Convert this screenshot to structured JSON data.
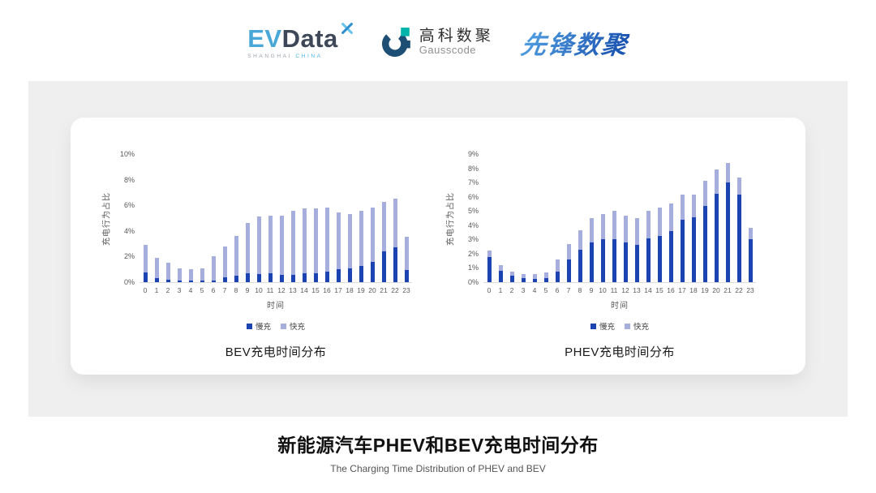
{
  "header": {
    "evdata": {
      "ev": "EV",
      "data": "Data",
      "sub_left": "SHANGHAI",
      "sub_right": "CHINA"
    },
    "gausscode": {
      "cn": "高科数聚",
      "en": "Gausscode"
    },
    "xianfeng": {
      "text": "先锋数聚"
    }
  },
  "footer": {
    "title": "新能源汽车PHEV和BEV充电时间分布",
    "subtitle": "The Charging Time Distribution of PHEV and BEV"
  },
  "colors": {
    "slow_charge": "#1b44b2",
    "fast_charge": "#a6aedd",
    "panel_gray": "#efefef",
    "axis_text": "#595959",
    "evdata_blue": "#49a8d8",
    "evdata_dark": "#3d4757",
    "gauss_navy": "#1d4e74",
    "gauss_teal": "#00b3ab",
    "xianfeng_blue": "#2a6fc4"
  },
  "chart_data": [
    {
      "type": "bar",
      "stacked": true,
      "title": "BEV充电时间分布",
      "xlabel": "时间",
      "ylabel": "充电行为占比",
      "categories": [
        0,
        1,
        2,
        3,
        4,
        5,
        6,
        7,
        8,
        9,
        10,
        11,
        12,
        13,
        14,
        15,
        16,
        17,
        18,
        19,
        20,
        21,
        22,
        23
      ],
      "series": [
        {
          "name": "慢充",
          "color": "#1b44b2",
          "values": [
            0.75,
            0.35,
            0.2,
            0.1,
            0.1,
            0.1,
            0.15,
            0.4,
            0.5,
            0.7,
            0.65,
            0.7,
            0.6,
            0.6,
            0.7,
            0.7,
            0.8,
            1.0,
            1.1,
            1.3,
            1.6,
            2.4,
            2.7,
            0.95
          ]
        },
        {
          "name": "快充",
          "color": "#a6aedd",
          "values": [
            2.15,
            1.55,
            1.3,
            1.0,
            0.9,
            1.0,
            1.85,
            2.4,
            3.1,
            3.9,
            4.5,
            4.5,
            4.6,
            5.0,
            5.05,
            5.05,
            5.0,
            4.45,
            4.2,
            4.25,
            4.25,
            3.9,
            3.8,
            2.6
          ]
        }
      ],
      "ylim": [
        0,
        10
      ],
      "ytick_step": 2,
      "ytick_suffix": "%",
      "grid": false,
      "legend_position": "bottom"
    },
    {
      "type": "bar",
      "stacked": true,
      "title": "PHEV充电时间分布",
      "xlabel": "时间",
      "ylabel": "充电行为占比",
      "categories": [
        0,
        1,
        2,
        3,
        4,
        5,
        6,
        7,
        8,
        9,
        10,
        11,
        12,
        13,
        14,
        15,
        16,
        17,
        18,
        19,
        20,
        21,
        22,
        23
      ],
      "series": [
        {
          "name": "慢充",
          "color": "#1b44b2",
          "values": [
            1.75,
            0.8,
            0.45,
            0.3,
            0.25,
            0.3,
            0.75,
            1.6,
            2.3,
            2.8,
            3.0,
            3.0,
            2.8,
            2.65,
            3.1,
            3.25,
            3.6,
            4.4,
            4.55,
            5.35,
            6.2,
            7.0,
            6.15,
            3.05
          ]
        },
        {
          "name": "快充",
          "color": "#a6aedd",
          "values": [
            0.5,
            0.4,
            0.3,
            0.25,
            0.3,
            0.4,
            0.85,
            1.1,
            1.35,
            1.7,
            1.8,
            2.0,
            1.85,
            1.85,
            1.9,
            2.0,
            1.9,
            1.75,
            1.6,
            1.75,
            1.75,
            1.4,
            1.2,
            0.8
          ]
        }
      ],
      "ylim": [
        0,
        9
      ],
      "ytick_step": 1,
      "ytick_suffix": "%",
      "grid": false,
      "legend_position": "bottom"
    }
  ]
}
